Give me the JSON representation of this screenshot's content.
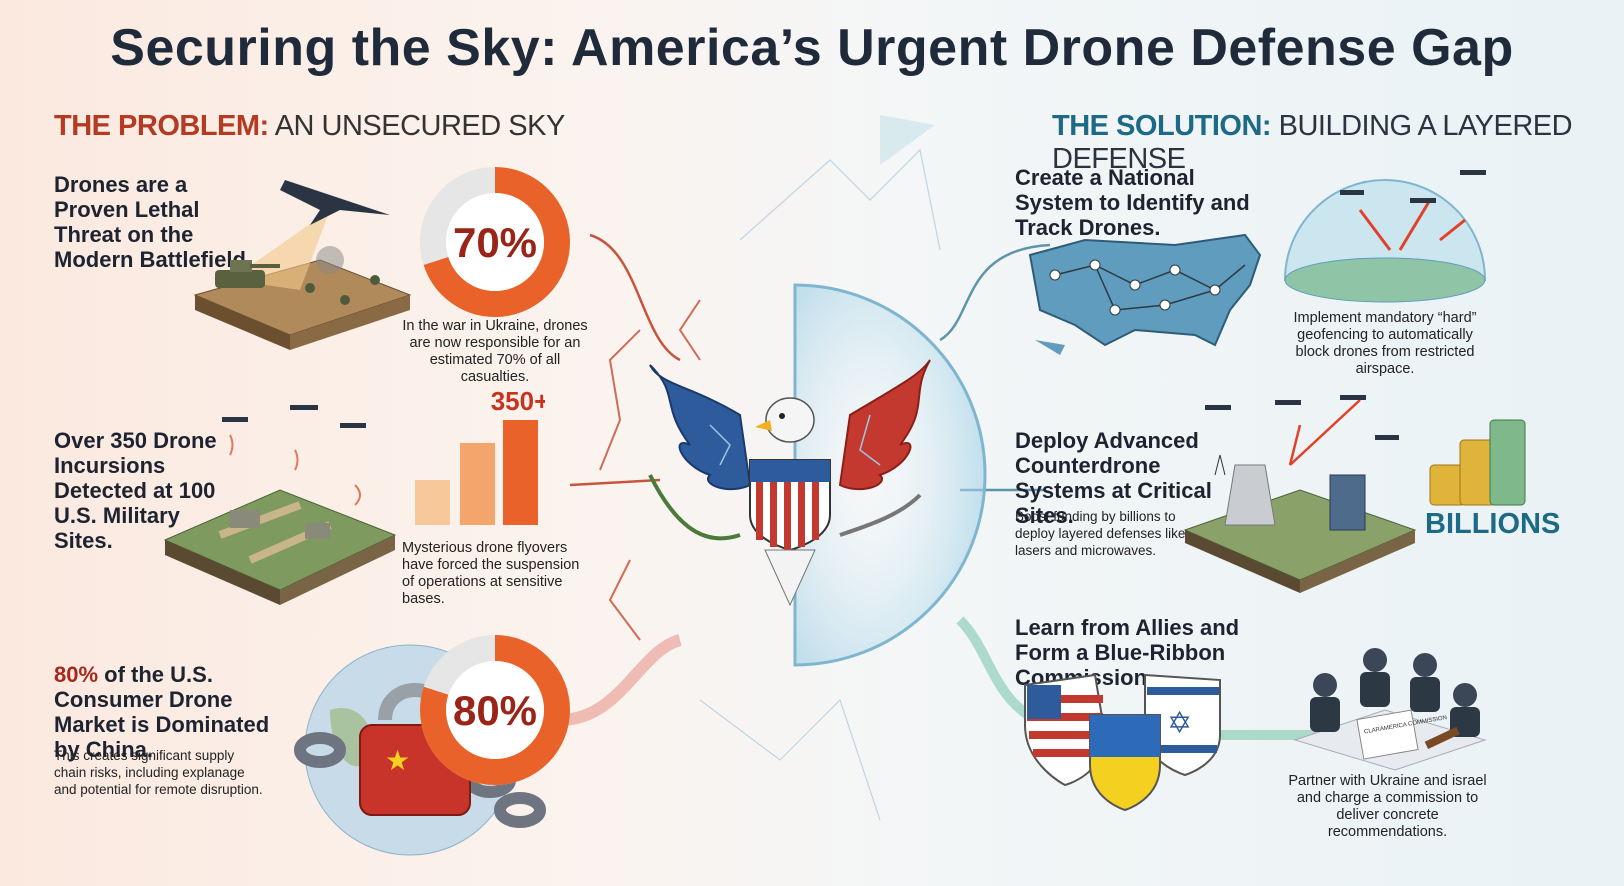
{
  "title": "Securing the Sky: America’s Urgent Drone Defense Gap",
  "problem": {
    "label": "THE PROBLEM:",
    "subtitle": "AN UNSECURED SKY",
    "items": [
      {
        "heading": "Drones are a Proven Lethal Threat on the Modern Battlefield.",
        "stat": "70%",
        "stat_value": 70,
        "caption": "In the war in Ukraine, drones are now responsible for an estimated 70% of all casualties."
      },
      {
        "heading": "Over 350 Drone Incursions Detected at 100 U.S. Military Sites.",
        "stat": "350+",
        "caption": "Mysterious drone flyovers have forced the suspension of operations at sensitive bases."
      },
      {
        "heading_highlight": "80%",
        "heading": " of the U.S. Consumer Drone Market is Dominated by China.",
        "stat": "80%",
        "stat_value": 80,
        "caption": "This creates significant supply chain risks, including explanage and potential for remote disruption."
      }
    ]
  },
  "solution": {
    "label": "THE SOLUTION:",
    "subtitle": "BUILDING A LAYERED DEFENSE",
    "items": [
      {
        "heading": "Create a National System to Identify and Track Drones.",
        "caption": "Implement mandatory “hard” geofencing to automatically block drones from restricted airspace."
      },
      {
        "heading": "Deploy Advanced Counterdrone Systems at Critical Sites.",
        "caption": "Boost funding by billions to deploy layered defenses like lasers and microwaves.",
        "badge": "BILLIONS"
      },
      {
        "heading": "Learn from Allies and Form a Blue-Ribbon Commission.",
        "caption": "Partner with Ukraine and israel and charge a commission to deliver concrete recommendations.",
        "document_label": "CLARAMERICA COMMISSION"
      }
    ]
  },
  "colors": {
    "red": "#b53a22",
    "teal": "#1c6a86",
    "navy": "#1f2a3a",
    "orange": "#e8622a"
  }
}
